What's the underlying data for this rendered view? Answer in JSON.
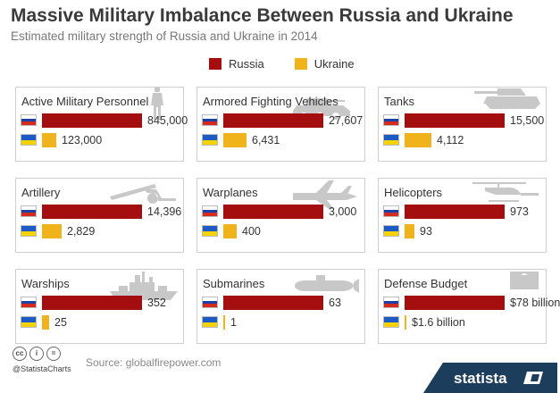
{
  "title": "Massive Military Imbalance Between Russia and Ukraine",
  "subtitle": "Estimated military strength of Russia and Ukraine in 2014",
  "legend": {
    "russia": "Russia",
    "ukraine": "Ukraine"
  },
  "colors": {
    "russia": "#a50e0e",
    "ukraine": "#f1b31c",
    "panel_border": "#cfcfcf",
    "silhouette": "#c8c8c8",
    "brand_bg": "#1d3d5c"
  },
  "footer": {
    "handle": "@StatistaCharts",
    "source": "Source: globalfirepower.com",
    "brand": "statista",
    "license_icons": [
      "cc-icon",
      "attribution-icon",
      "no-derivatives-icon"
    ]
  },
  "chart_data": {
    "type": "bar",
    "title": "Massive Military Imbalance Between Russia and Ukraine",
    "subtitle": "Estimated military strength of Russia and Ukraine in 2014",
    "legend_position": "top-center",
    "categories": [
      "Active Military Personnel",
      "Armored Fighting Vehicles",
      "Tanks",
      "Artillery",
      "Warplanes",
      "Helicopters",
      "Warships",
      "Submarines",
      "Defense Budget"
    ],
    "series": [
      {
        "name": "Russia",
        "values": [
          845000,
          27607,
          15500,
          14396,
          3000,
          973,
          352,
          63,
          78
        ]
      },
      {
        "name": "Ukraine",
        "values": [
          123000,
          6431,
          4112,
          2829,
          400,
          93,
          25,
          1,
          1.6
        ]
      }
    ],
    "labels": {
      "russia": [
        "845,000",
        "27,607",
        "15,500",
        "14,396",
        "3,000",
        "973",
        "352",
        "63",
        "$78 billion"
      ],
      "ukraine": [
        "123,000",
        "6,431",
        "4,112",
        "2,829",
        "400",
        "93",
        "25",
        "1",
        "$1.6 billion"
      ]
    },
    "defense_budget_unit": "billion USD",
    "silhouettes": [
      "soldier-icon",
      "armored-vehicle-icon",
      "tank-icon",
      "artillery-icon",
      "warplane-icon",
      "helicopter-icon",
      "warship-icon",
      "submarine-icon",
      "money-icon"
    ]
  }
}
